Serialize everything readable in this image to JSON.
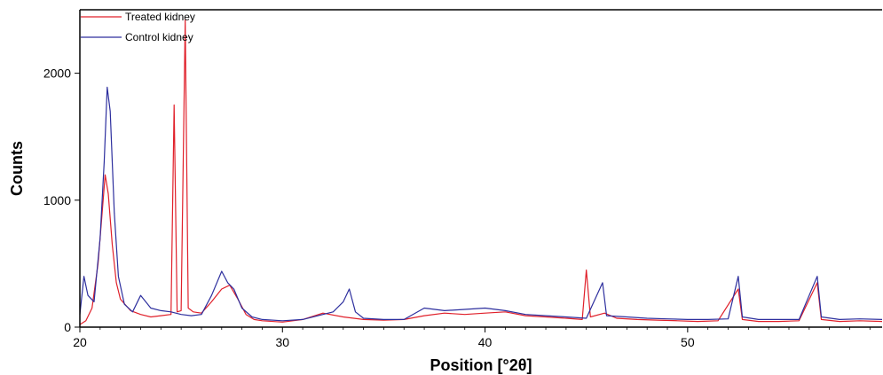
{
  "chart_data": {
    "type": "line",
    "title": "",
    "xlabel": "Position [°2θ]",
    "ylabel": "Counts",
    "xlim": [
      20,
      59.6
    ],
    "ylim": [
      0,
      2500
    ],
    "x_ticks": [
      "20",
      "30",
      "40",
      "50"
    ],
    "y_ticks": [
      "0",
      "1000",
      "2000"
    ],
    "grid": false,
    "legend_position": "top-left",
    "series": [
      {
        "name": "Treated kidney",
        "color": "#e0202a",
        "points": [
          [
            20.0,
            20
          ],
          [
            20.3,
            50
          ],
          [
            20.6,
            150
          ],
          [
            20.9,
            500
          ],
          [
            21.1,
            900
          ],
          [
            21.25,
            1200
          ],
          [
            21.4,
            1050
          ],
          [
            21.6,
            650
          ],
          [
            21.8,
            350
          ],
          [
            22.0,
            220
          ],
          [
            22.5,
            130
          ],
          [
            23.0,
            100
          ],
          [
            23.5,
            80
          ],
          [
            24.0,
            90
          ],
          [
            24.5,
            100
          ],
          [
            24.65,
            1750
          ],
          [
            24.8,
            120
          ],
          [
            25.0,
            130
          ],
          [
            25.2,
            2420
          ],
          [
            25.35,
            150
          ],
          [
            25.6,
            120
          ],
          [
            26.0,
            110
          ],
          [
            26.5,
            200
          ],
          [
            27.0,
            300
          ],
          [
            27.4,
            330
          ],
          [
            27.8,
            220
          ],
          [
            28.2,
            100
          ],
          [
            28.6,
            60
          ],
          [
            29.0,
            50
          ],
          [
            30.0,
            40
          ],
          [
            31.0,
            60
          ],
          [
            32.0,
            110
          ],
          [
            33.0,
            80
          ],
          [
            34.0,
            60
          ],
          [
            35.0,
            55
          ],
          [
            36.0,
            60
          ],
          [
            37.0,
            90
          ],
          [
            38.0,
            110
          ],
          [
            39.0,
            100
          ],
          [
            40.0,
            110
          ],
          [
            41.0,
            120
          ],
          [
            42.0,
            90
          ],
          [
            43.0,
            80
          ],
          [
            44.0,
            70
          ],
          [
            44.8,
            60
          ],
          [
            45.0,
            450
          ],
          [
            45.2,
            80
          ],
          [
            45.9,
            110
          ],
          [
            46.5,
            70
          ],
          [
            47.5,
            60
          ],
          [
            48.5,
            55
          ],
          [
            49.5,
            50
          ],
          [
            50.5,
            45
          ],
          [
            51.5,
            50
          ],
          [
            52.5,
            300
          ],
          [
            52.7,
            60
          ],
          [
            53.5,
            45
          ],
          [
            54.5,
            45
          ],
          [
            55.5,
            50
          ],
          [
            56.4,
            350
          ],
          [
            56.6,
            60
          ],
          [
            57.5,
            45
          ],
          [
            58.5,
            50
          ],
          [
            59.6,
            45
          ]
        ]
      },
      {
        "name": "Control kidney",
        "color": "#2d2f9e",
        "points": [
          [
            20.0,
            100
          ],
          [
            20.2,
            400
          ],
          [
            20.4,
            250
          ],
          [
            20.7,
            200
          ],
          [
            21.0,
            700
          ],
          [
            21.2,
            1300
          ],
          [
            21.35,
            1890
          ],
          [
            21.5,
            1700
          ],
          [
            21.7,
            900
          ],
          [
            21.9,
            400
          ],
          [
            22.2,
            180
          ],
          [
            22.6,
            120
          ],
          [
            23.0,
            250
          ],
          [
            23.5,
            150
          ],
          [
            24.0,
            130
          ],
          [
            24.5,
            120
          ],
          [
            25.0,
            100
          ],
          [
            25.5,
            90
          ],
          [
            26.0,
            100
          ],
          [
            26.5,
            250
          ],
          [
            27.0,
            440
          ],
          [
            27.3,
            350
          ],
          [
            27.6,
            300
          ],
          [
            28.0,
            150
          ],
          [
            28.5,
            80
          ],
          [
            29.0,
            60
          ],
          [
            30.0,
            50
          ],
          [
            31.0,
            60
          ],
          [
            32.0,
            100
          ],
          [
            32.5,
            120
          ],
          [
            33.0,
            200
          ],
          [
            33.3,
            300
          ],
          [
            33.6,
            120
          ],
          [
            34.0,
            70
          ],
          [
            35.0,
            60
          ],
          [
            36.0,
            60
          ],
          [
            37.0,
            150
          ],
          [
            38.0,
            130
          ],
          [
            39.0,
            140
          ],
          [
            40.0,
            150
          ],
          [
            41.0,
            130
          ],
          [
            42.0,
            100
          ],
          [
            43.0,
            90
          ],
          [
            44.0,
            80
          ],
          [
            45.0,
            70
          ],
          [
            45.8,
            350
          ],
          [
            46.0,
            90
          ],
          [
            47.0,
            80
          ],
          [
            48.0,
            70
          ],
          [
            49.0,
            65
          ],
          [
            50.0,
            60
          ],
          [
            51.0,
            60
          ],
          [
            52.0,
            65
          ],
          [
            52.5,
            400
          ],
          [
            52.7,
            80
          ],
          [
            53.5,
            60
          ],
          [
            54.5,
            60
          ],
          [
            55.5,
            60
          ],
          [
            56.4,
            400
          ],
          [
            56.6,
            80
          ],
          [
            57.5,
            60
          ],
          [
            58.5,
            65
          ],
          [
            59.6,
            60
          ]
        ]
      }
    ]
  }
}
